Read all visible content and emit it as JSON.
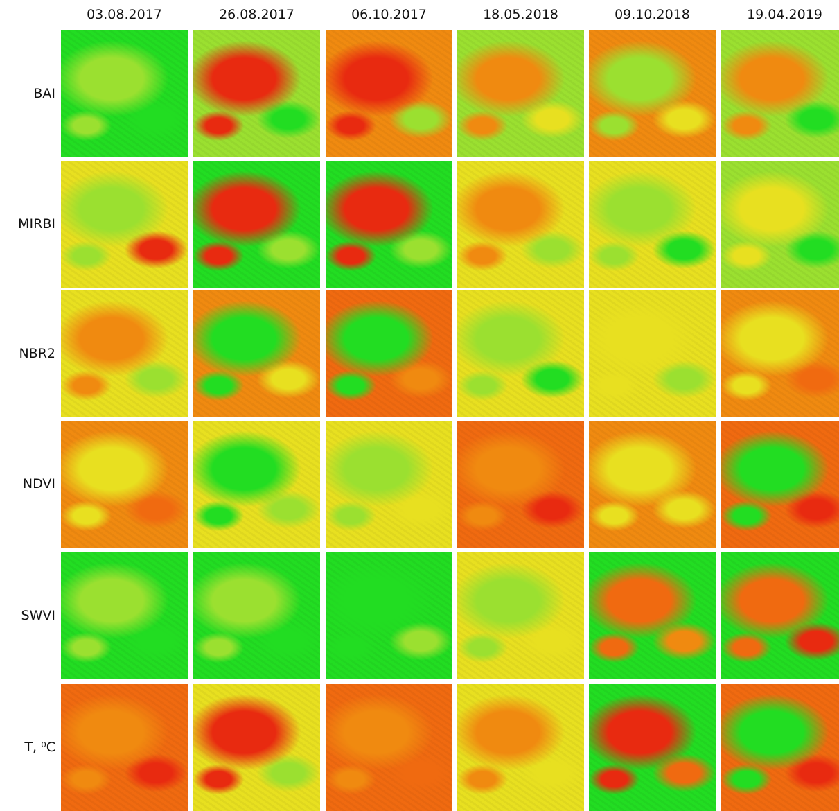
{
  "columns": [
    "03.08.2017",
    "26.08.2017",
    "06.10.2017",
    "18.05.2018",
    "09.10.2018",
    "19.04.2019"
  ],
  "rows": [
    "BAI",
    "MIRBI",
    "NBR2",
    "NDVI",
    "SWVI",
    "T, ⁰C"
  ]
}
